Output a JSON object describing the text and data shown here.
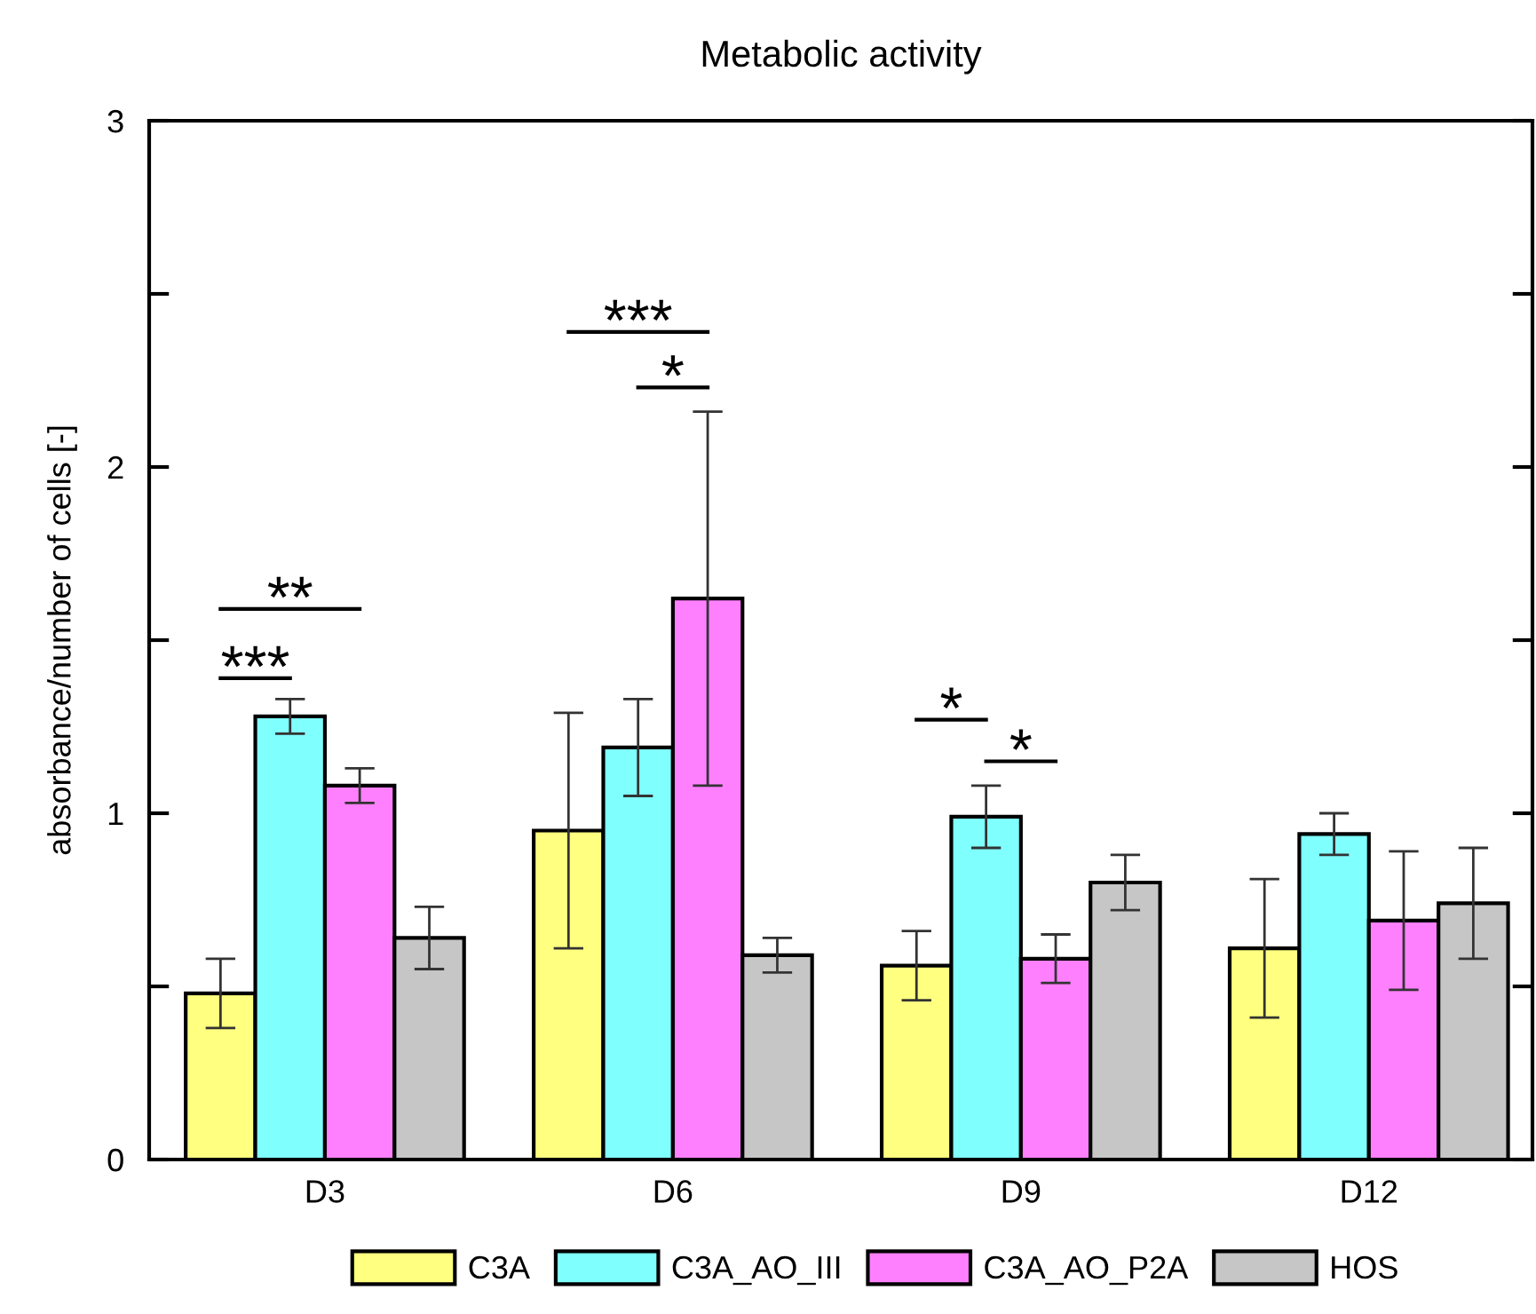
{
  "chart_data": {
    "type": "bar",
    "title": "Metabolic activity",
    "ylabel": "absorbance/number of cells [-]",
    "categories": [
      "D3",
      "D6",
      "D9",
      "D12"
    ],
    "series": [
      {
        "name": "C3A",
        "color": "#ffff80",
        "values": [
          0.48,
          0.95,
          0.56,
          0.61
        ],
        "errors": [
          0.1,
          0.34,
          0.1,
          0.2
        ]
      },
      {
        "name": "C3A_AO_III",
        "color": "#80ffff",
        "values": [
          1.28,
          1.19,
          0.99,
          0.94
        ],
        "errors": [
          0.05,
          0.14,
          0.09,
          0.06
        ]
      },
      {
        "name": "C3A_AO_P2A",
        "color": "#ff80ff",
        "values": [
          1.08,
          1.62,
          0.58,
          0.69
        ],
        "errors": [
          0.05,
          0.54,
          0.07,
          0.2
        ]
      },
      {
        "name": "HOS",
        "color": "#c6c6c6",
        "values": [
          0.64,
          0.59,
          0.8,
          0.74
        ],
        "errors": [
          0.09,
          0.05,
          0.08,
          0.16
        ]
      }
    ],
    "ylim": [
      0,
      3
    ],
    "yticks": [
      0,
      {
        "value": 0.5,
        "label": null
      },
      1,
      {
        "value": 1.5,
        "label": null
      },
      2,
      {
        "value": 2.5,
        "label": null
      },
      3
    ],
    "annotations": [
      "**",
      "***",
      "***",
      "*",
      "*",
      "*"
    ],
    "legend": "bottom",
    "grid": false
  }
}
